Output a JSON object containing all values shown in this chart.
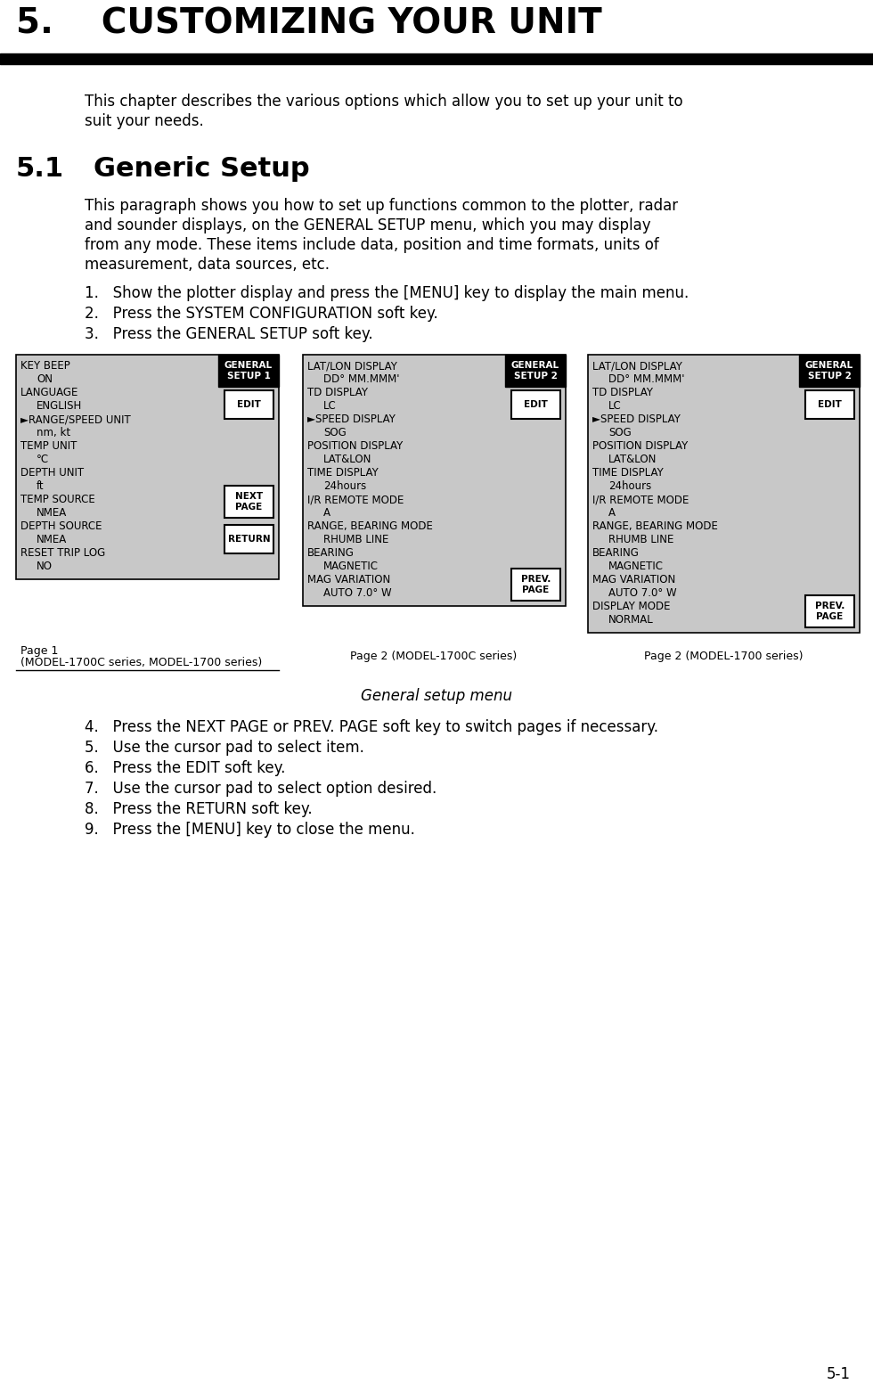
{
  "title": "5.    CUSTOMIZING YOUR UNIT",
  "section_num": "5.1",
  "section_title": "Generic Setup",
  "bg_color": "#ffffff",
  "body_text_1_lines": [
    "This chapter describes the various options which allow you to set up your unit to",
    "suit your needs."
  ],
  "body_text_2_lines": [
    "This paragraph shows you how to set up functions common to the plotter, radar",
    "and sounder displays, on the GENERAL SETUP menu, which you may display",
    "from any mode. These items include data, position and time formats, units of",
    "measurement, data sources, etc."
  ],
  "steps_before": [
    "1.   Show the plotter display and press the [MENU] key to display the main menu.",
    "2.   Press the SYSTEM CONFIGURATION soft key.",
    "3.   Press the GENERAL SETUP soft key."
  ],
  "steps_after": [
    "4.   Press the NEXT PAGE or PREV. PAGE soft key to switch pages if necessary.",
    "5.   Use the cursor pad to select item.",
    "6.   Press the EDIT soft key.",
    "7.   Use the cursor pad to select option desired.",
    "8.   Press the RETURN soft key.",
    "9.   Press the [MENU] key to close the menu."
  ],
  "caption": "General setup menu",
  "page_num": "5-1",
  "panel1_header_line1": "GENERAL",
  "panel1_header_line2": "SETUP 1",
  "panel1_lines": [
    [
      "KEY BEEP",
      false
    ],
    [
      "ON",
      true
    ],
    [
      "LANGUAGE",
      false
    ],
    [
      "ENGLISH",
      true
    ],
    [
      "►RANGE/SPEED UNIT",
      false
    ],
    [
      "nm, kt",
      true
    ],
    [
      "TEMP UNIT",
      false
    ],
    [
      "°C",
      true
    ],
    [
      "DEPTH UNIT",
      false
    ],
    [
      "ft",
      true
    ],
    [
      "TEMP SOURCE",
      false
    ],
    [
      "NMEA",
      true
    ],
    [
      "DEPTH SOURCE",
      false
    ],
    [
      "NMEA",
      true
    ],
    [
      "RESET TRIP LOG",
      false
    ],
    [
      "NO",
      true
    ]
  ],
  "panel2_header_line1": "GENERAL",
  "panel2_header_line2": "SETUP 2",
  "panel2_lines": [
    [
      "LAT/LON DISPLAY",
      false
    ],
    [
      "DD° MM.MMM'",
      true
    ],
    [
      "TD DISPLAY",
      false
    ],
    [
      "LC",
      true
    ],
    [
      "►SPEED DISPLAY",
      false
    ],
    [
      "SOG",
      true
    ],
    [
      "POSITION DISPLAY",
      false
    ],
    [
      "LAT&LON",
      true
    ],
    [
      "TIME DISPLAY",
      false
    ],
    [
      "24hours",
      true
    ],
    [
      "I/R REMOTE MODE",
      false
    ],
    [
      "A",
      true
    ],
    [
      "RANGE, BEARING MODE",
      false
    ],
    [
      "RHUMB LINE",
      true
    ],
    [
      "BEARING",
      false
    ],
    [
      "MAGNETIC",
      true
    ],
    [
      "MAG VARIATION",
      false
    ],
    [
      "AUTO 7.0° W",
      true
    ]
  ],
  "panel3_header_line1": "GENERAL",
  "panel3_header_line2": "SETUP 2",
  "panel3_lines": [
    [
      "LAT/LON DISPLAY",
      false
    ],
    [
      "DD° MM.MMM'",
      true
    ],
    [
      "TD DISPLAY",
      false
    ],
    [
      "LC",
      true
    ],
    [
      "►SPEED DISPLAY",
      false
    ],
    [
      "SOG",
      true
    ],
    [
      "POSITION DISPLAY",
      false
    ],
    [
      "LAT&LON",
      true
    ],
    [
      "TIME DISPLAY",
      false
    ],
    [
      "24hours",
      true
    ],
    [
      "I/R REMOTE MODE",
      false
    ],
    [
      "A",
      true
    ],
    [
      "RANGE, BEARING MODE",
      false
    ],
    [
      "RHUMB LINE",
      true
    ],
    [
      "BEARING",
      false
    ],
    [
      "MAGNETIC",
      true
    ],
    [
      "MAG VARIATION",
      false
    ],
    [
      "AUTO 7.0° W",
      true
    ],
    [
      "DISPLAY MODE",
      false
    ],
    [
      "NORMAL",
      true
    ]
  ],
  "panel1_caption": "Page 1",
  "panel1_caption2": "(MODEL-1700C series, MODEL-1700 series)",
  "panel2_caption": "Page 2 (MODEL-1700C series)",
  "panel3_caption": "Page 2 (MODEL-1700 series)"
}
